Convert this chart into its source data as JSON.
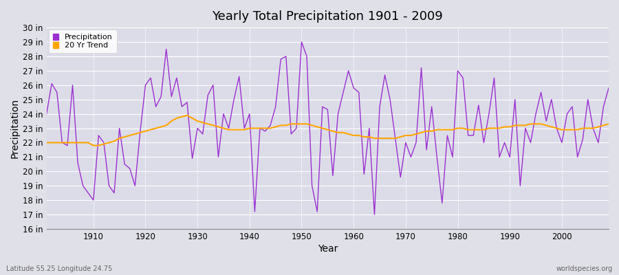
{
  "title": "Yearly Total Precipitation 1901 - 2009",
  "xlabel": "Year",
  "ylabel": "Precipitation",
  "footnote_left": "Latitude 55.25 Longitude 24.75",
  "footnote_right": "worldspecies.org",
  "precip_color": "#9B30D0",
  "trend_color": "#FFA500",
  "bg_color": "#E0E0E8",
  "plot_bg_color": "#DCDCE8",
  "ylim": [
    16,
    30
  ],
  "yticks": [
    16,
    17,
    18,
    19,
    20,
    21,
    22,
    23,
    24,
    25,
    26,
    27,
    28,
    29,
    30
  ],
  "xlim": [
    1901,
    2009
  ],
  "xticks": [
    1910,
    1920,
    1930,
    1940,
    1950,
    1960,
    1970,
    1980,
    1990,
    2000
  ],
  "years": [
    1901,
    1902,
    1903,
    1904,
    1905,
    1906,
    1907,
    1908,
    1909,
    1910,
    1911,
    1912,
    1913,
    1914,
    1915,
    1916,
    1917,
    1918,
    1919,
    1920,
    1921,
    1922,
    1923,
    1924,
    1925,
    1926,
    1927,
    1928,
    1929,
    1930,
    1931,
    1932,
    1933,
    1934,
    1935,
    1936,
    1937,
    1938,
    1939,
    1940,
    1941,
    1942,
    1943,
    1944,
    1945,
    1946,
    1947,
    1948,
    1949,
    1950,
    1951,
    1952,
    1953,
    1954,
    1955,
    1956,
    1957,
    1958,
    1959,
    1960,
    1961,
    1962,
    1963,
    1964,
    1965,
    1966,
    1967,
    1968,
    1969,
    1970,
    1971,
    1972,
    1973,
    1974,
    1975,
    1976,
    1977,
    1978,
    1979,
    1980,
    1981,
    1982,
    1983,
    1984,
    1985,
    1986,
    1987,
    1988,
    1989,
    1990,
    1991,
    1992,
    1993,
    1994,
    1995,
    1996,
    1997,
    1998,
    1999,
    2000,
    2001,
    2002,
    2003,
    2004,
    2005,
    2006,
    2007,
    2008,
    2009
  ],
  "precip": [
    24.0,
    26.1,
    25.5,
    22.0,
    21.8,
    26.0,
    20.6,
    19.0,
    18.5,
    18.0,
    22.5,
    22.0,
    19.0,
    18.5,
    23.0,
    20.5,
    20.2,
    19.0,
    22.8,
    26.0,
    26.5,
    24.5,
    25.2,
    28.5,
    25.2,
    26.5,
    24.5,
    24.8,
    20.9,
    23.0,
    22.6,
    25.3,
    26.0,
    21.0,
    24.0,
    23.0,
    25.0,
    26.6,
    23.0,
    24.0,
    17.2,
    23.0,
    22.8,
    23.2,
    24.5,
    27.8,
    28.0,
    22.6,
    23.0,
    29.0,
    28.0,
    19.0,
    17.2,
    24.5,
    24.3,
    19.7,
    24.0,
    25.5,
    27.0,
    25.8,
    25.5,
    19.8,
    23.0,
    17.0,
    24.5,
    26.7,
    25.0,
    22.3,
    19.6,
    22.0,
    21.0,
    22.0,
    27.2,
    21.5,
    24.5,
    21.0,
    17.8,
    22.5,
    21.0,
    27.0,
    26.5,
    22.5,
    22.5,
    24.6,
    22.0,
    24.0,
    26.5,
    21.0,
    22.0,
    21.0,
    25.0,
    19.0,
    23.0,
    22.0,
    24.0,
    25.5,
    23.5,
    25.0,
    23.0,
    22.0,
    24.0,
    24.5,
    21.0,
    22.2,
    25.0,
    23.0,
    22.0,
    24.5,
    25.8
  ],
  "trend": [
    22.0,
    22.0,
    22.0,
    22.0,
    22.0,
    22.0,
    22.0,
    22.0,
    22.0,
    21.8,
    21.8,
    21.9,
    22.0,
    22.1,
    22.3,
    22.4,
    22.5,
    22.6,
    22.7,
    22.8,
    22.9,
    23.0,
    23.1,
    23.2,
    23.5,
    23.7,
    23.8,
    23.9,
    23.7,
    23.5,
    23.4,
    23.3,
    23.2,
    23.1,
    23.0,
    22.9,
    22.9,
    22.9,
    22.9,
    23.0,
    23.0,
    23.0,
    23.0,
    23.0,
    23.1,
    23.2,
    23.2,
    23.3,
    23.3,
    23.3,
    23.3,
    23.2,
    23.1,
    23.0,
    22.9,
    22.8,
    22.7,
    22.7,
    22.6,
    22.5,
    22.5,
    22.4,
    22.4,
    22.3,
    22.3,
    22.3,
    22.3,
    22.3,
    22.4,
    22.5,
    22.5,
    22.6,
    22.7,
    22.8,
    22.8,
    22.9,
    22.9,
    22.9,
    22.9,
    23.0,
    23.0,
    22.9,
    22.9,
    22.9,
    22.9,
    23.0,
    23.0,
    23.0,
    23.1,
    23.1,
    23.2,
    23.2,
    23.2,
    23.3,
    23.3,
    23.3,
    23.2,
    23.1,
    23.0,
    22.9,
    22.9,
    22.9,
    22.9,
    23.0,
    23.0,
    23.0,
    23.1,
    23.2,
    23.3
  ]
}
